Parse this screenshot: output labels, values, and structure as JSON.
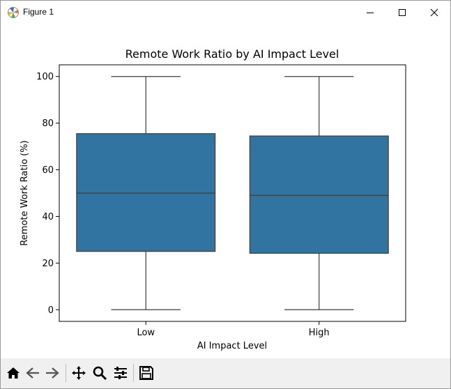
{
  "window": {
    "title": "Figure 1"
  },
  "chart_data": {
    "type": "box",
    "title": "Remote Work Ratio by AI Impact Level",
    "xlabel": "AI Impact Level",
    "ylabel": "Remote Work Ratio (%)",
    "ylim": [
      -5,
      105
    ],
    "yticks": [
      0,
      20,
      40,
      60,
      80,
      100
    ],
    "grid": false,
    "categories": [
      "Low",
      "High"
    ],
    "boxes": [
      {
        "category": "Low",
        "min": 0,
        "q1": 25,
        "median": 50,
        "q3": 75.5,
        "max": 100
      },
      {
        "category": "High",
        "min": 0,
        "q1": 24.2,
        "median": 49,
        "q3": 74.5,
        "max": 100
      }
    ],
    "box_color": "#3274a1"
  },
  "toolbar": {
    "items": [
      "home-icon",
      "back-icon",
      "forward-icon",
      "pan-icon",
      "zoom-icon",
      "configure-subplots-icon",
      "save-icon"
    ]
  }
}
